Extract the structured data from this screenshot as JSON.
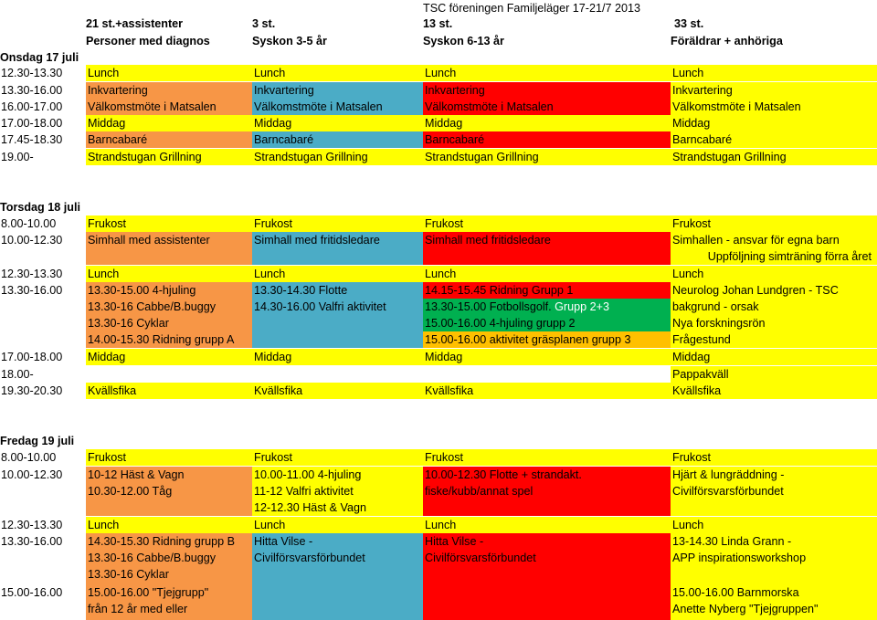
{
  "title": "TSC föreningen Familjeläger 17-21/7 2013",
  "headers": {
    "col1_a": "21 st.+assistenter",
    "col1_b": "Personer med diagnos",
    "col2_a": "3 st.",
    "col2_b": "Syskon 3-5 år",
    "col3_a": "13 st.",
    "col3_b": "Syskon 6-13 år",
    "col4_a": "33 st.",
    "col4_b": "Föräldrar + anhöriga"
  },
  "wed": {
    "day": "Onsdag 17 juli",
    "rows": [
      {
        "time": "12.30-13.30",
        "c1": "Lunch",
        "c2": "Lunch",
        "c3": "Lunch",
        "c4": "Lunch"
      },
      {
        "time": "13.30-16.00",
        "c1": "Inkvartering",
        "c2": "Inkvartering",
        "c3": "Inkvartering",
        "c4": "Inkvartering"
      },
      {
        "time": "16.00-17.00",
        "c1": "Välkomstmöte i Matsalen",
        "c2": "Välkomstmöte i Matsalen",
        "c3": "Välkomstmöte i Matsalen",
        "c4": "Välkomstmöte i Matsalen"
      },
      {
        "time": "17.00-18.00",
        "c1": "Middag",
        "c2": "Middag",
        "c3": "Middag",
        "c4": "Middag"
      },
      {
        "time": "17.45-18.30",
        "c1": "Barncabaré",
        "c2": "Barncabaré",
        "c3": "Barncabaré",
        "c4": "Barncabaré"
      },
      {
        "time": "19.00-",
        "c1": "Strandstugan Grillning",
        "c2": "Strandstugan Grillning",
        "c3": "Strandstugan Grillning",
        "c4": "Strandstugan Grillning"
      }
    ]
  },
  "thu": {
    "day": "Torsdag 18 juli",
    "r1": {
      "time": "8.00-10.00",
      "c1": "Frukost",
      "c2": "Frukost",
      "c3": "Frukost",
      "c4": "Frukost"
    },
    "r2": {
      "time": "10.00-12.30",
      "c1": "Simhall med assistenter",
      "c2": "Simhall med fritidsledare",
      "c3": "Simhall med fritidsledare",
      "c4": "Simhallen - ansvar för egna barn",
      "c4b": "Uppföljning simträning förra året"
    },
    "r3": {
      "time": "12.30-13.30",
      "c1": "Lunch",
      "c2": "Lunch",
      "c3": "Lunch",
      "c4": "Lunch"
    },
    "r4": {
      "time": "13.30-16.00",
      "c1": [
        "13.30-15.00 4-hjuling",
        "13.30-16 Cabbe/B.buggy",
        "13.30-16 Cyklar",
        "14.00-15.30 Ridning grupp A"
      ],
      "c2": [
        "13.30-14.30 Flotte",
        "14.30-16.00 Valfri aktivitet"
      ],
      "c3a": "14.15-15.45 Ridning Grupp 1",
      "c3b": "13.30-15.00 Fotbollsgolf.",
      "c3b_grp": "Grupp 2+3",
      "c3c": "15.00-16.00 4-hjuling grupp 2",
      "c3d": "15.00-16.00 aktivitet gräsplanen grupp 3",
      "c4": [
        "Neurolog Johan Lundgren - TSC",
        "bakgrund - orsak",
        "Nya forskningsrön",
        "Frågestund"
      ]
    },
    "r5": {
      "time": "17.00-18.00",
      "c1": "Middag",
      "c2": "Middag",
      "c3": "Middag",
      "c4": "Middag"
    },
    "r6": {
      "time": "18.00-",
      "c4": "Pappakväll"
    },
    "r7": {
      "time": "19.30-20.30",
      "c1": "Kvällsfika",
      "c2": "Kvällsfika",
      "c3": "Kvällsfika",
      "c4": "Kvällsfika"
    }
  },
  "fri": {
    "day": "Fredag 19 juli",
    "r1": {
      "time": "8.00-10.00",
      "c1": "Frukost",
      "c2": "Frukost",
      "c3": "Frukost",
      "c4": "Frukost"
    },
    "r2": {
      "time": "10.00-12.30",
      "c1": [
        "10-12 Häst & Vagn",
        "10.30-12.00 Tåg"
      ],
      "c2": [
        "10.00-11.00 4-hjuling",
        "11-12 Valfri aktivitet",
        "12-12.30 Häst & Vagn"
      ],
      "c3": [
        "10.00-12.30 Flotte + strandakt.",
        "fiske/kubb/annat spel"
      ],
      "c4": [
        "Hjärt & lungräddning -",
        "Civilförsvarsförbundet"
      ]
    },
    "r3": {
      "time": "12.30-13.30",
      "c1": "Lunch",
      "c2": "Lunch",
      "c3": "Lunch",
      "c4": "Lunch"
    },
    "r4": {
      "time": "13.30-16.00",
      "c1": [
        "14.30-15.30 Ridning grupp B",
        "13.30-16 Cabbe/B.buggy",
        "13.30-16 Cyklar"
      ],
      "c2": [
        "Hitta Vilse -",
        "Civilförsvarsförbundet"
      ],
      "c3": [
        "Hitta Vilse -",
        "Civilförsvarsförbundet"
      ],
      "c4": [
        "13-14.30 Linda Grann -",
        "APP inspirationsworkshop"
      ]
    },
    "r5": {
      "time": "15.00-16.00",
      "c1": [
        "15.00-16.00 \"Tjejgrupp\"",
        "från 12 år med eller"
      ],
      "c4": [
        "15.00-16.00 Barnmorska",
        "Anette Nyberg \"Tjejgruppen\""
      ]
    }
  },
  "colors": {
    "orange": "#f79646",
    "blue": "#4bacc6",
    "red": "#ff0000",
    "yellow": "#ffff00",
    "green": "#00b050",
    "amber": "#ffc000"
  }
}
